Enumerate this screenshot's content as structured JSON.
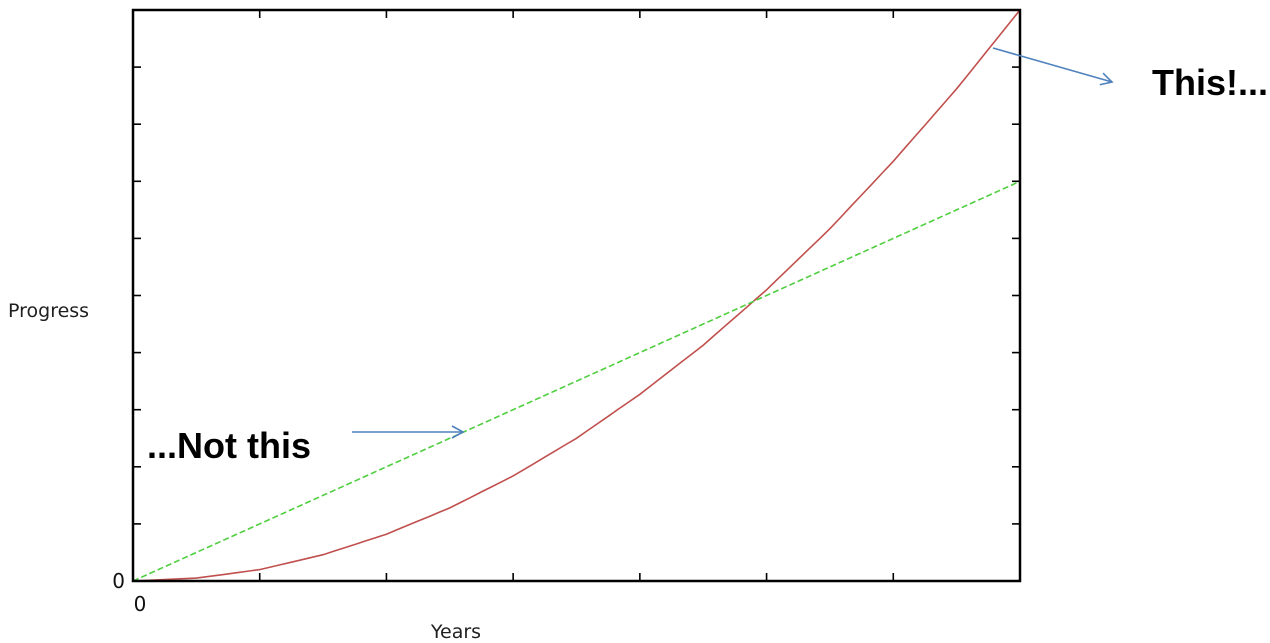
{
  "chart_data": {
    "type": "line",
    "title": "",
    "xlabel": "Years",
    "ylabel": "Progress",
    "xlim": [
      0,
      7
    ],
    "ylim": [
      0,
      10
    ],
    "x_tick_labels": [
      {
        "value": 0,
        "label": "0"
      }
    ],
    "y_tick_labels": [
      {
        "value": 0,
        "label": "0"
      }
    ],
    "x_ticks": [
      0,
      1,
      2,
      3,
      4,
      5,
      6,
      7
    ],
    "y_ticks": [
      0,
      1,
      2,
      3,
      4,
      5,
      6,
      7,
      8,
      9,
      10
    ],
    "grid": false,
    "legend": "none",
    "series": [
      {
        "color": "#c0504d",
        "style": "solid",
        "x": [
          0,
          0.5,
          1,
          1.5,
          2,
          2.5,
          3,
          3.5,
          4,
          4.5,
          5,
          5.5,
          6,
          6.5,
          7
        ],
        "y": [
          0,
          0.05,
          0.2,
          0.46,
          0.82,
          1.28,
          1.84,
          2.5,
          3.27,
          4.13,
          5.1,
          6.17,
          7.35,
          8.62,
          10
        ]
      },
      {
        "color": "#4fcf3f",
        "style": "dashed",
        "x": [
          0,
          7
        ],
        "y": [
          0,
          7
        ]
      }
    ],
    "annotations": [
      {
        "text": "This!...",
        "target": {
          "x": 6.8,
          "y": 9.3
        }
      },
      {
        "text": "...Not this",
        "target": {
          "x": 2.6,
          "y": 2.6
        }
      }
    ],
    "arrow_color": "#4f81bd"
  }
}
